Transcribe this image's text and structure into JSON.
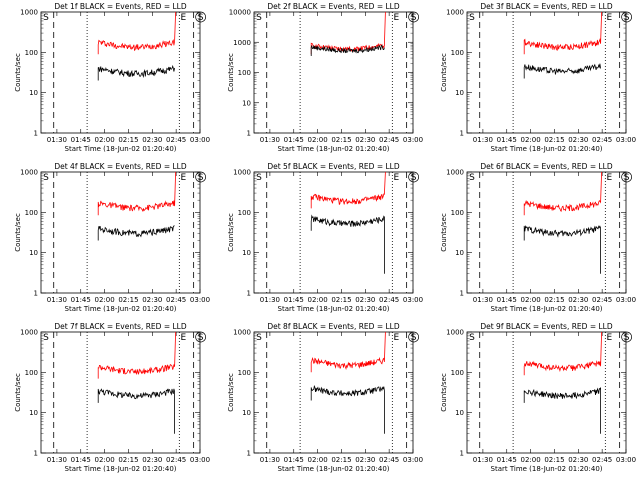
{
  "chart_data": [
    {
      "type": "line",
      "title": "Det 1f BLACK = Events, RED = LLD",
      "xlabel": "Start Time (18-Jun-02 01:20:40)",
      "ylabel": "Counts/sec",
      "yscale": "log",
      "ylim": [
        1,
        1000
      ],
      "xlim": [
        "01:20",
        "03:00"
      ],
      "x_ticks": [
        "01:30",
        "01:45",
        "02:00",
        "02:15",
        "02:30",
        "02:45",
        "03:00"
      ],
      "y_ticks": [
        "1",
        "10",
        "100",
        "1000"
      ],
      "markers": [
        "S",
        "E",
        "S"
      ],
      "series": [
        {
          "color": "#ff0000",
          "start": "01:56",
          "end": "02:44",
          "level": 180,
          "spike": 1000
        },
        {
          "color": "#000000",
          "start": "01:56",
          "end": "02:44",
          "level": 40
        }
      ]
    },
    {
      "type": "line",
      "title": "Det 2f BLACK = Events, RED = LLD",
      "xlabel": "Start Time (18-Jun-02 01:20:40)",
      "ylabel": "Counts/sec",
      "yscale": "log",
      "ylim": [
        1,
        10000
      ],
      "xlim": [
        "01:20",
        "03:00"
      ],
      "x_ticks": [
        "01:30",
        "01:45",
        "02:00",
        "02:15",
        "02:30",
        "02:45",
        "03:00"
      ],
      "y_ticks": [
        "1",
        "10",
        "100",
        "1000",
        "10000"
      ],
      "markers": [
        "S",
        "E",
        "S"
      ],
      "series": [
        {
          "color": "#ff0000",
          "start": "01:56",
          "end": "02:42",
          "level": 800,
          "spike": 10000
        },
        {
          "color": "#000000",
          "start": "01:56",
          "end": "02:42",
          "level": 700
        }
      ]
    },
    {
      "type": "line",
      "title": "Det 3f BLACK = Events, RED = LLD",
      "xlabel": "Start Time (18-Jun-02 01:20:40)",
      "ylabel": "Counts/sec",
      "yscale": "log",
      "ylim": [
        1,
        1000
      ],
      "xlim": [
        "01:20",
        "03:00"
      ],
      "x_ticks": [
        "01:30",
        "01:45",
        "02:00",
        "02:15",
        "02:30",
        "02:45",
        "03:00"
      ],
      "y_ticks": [
        "1",
        "10",
        "100",
        "1000"
      ],
      "markers": [
        "S",
        "E",
        "S"
      ],
      "series": [
        {
          "color": "#ff0000",
          "start": "01:56",
          "end": "02:44",
          "level": 180,
          "spike": 1000
        },
        {
          "color": "#000000",
          "start": "01:56",
          "end": "02:44",
          "level": 45
        }
      ]
    },
    {
      "type": "line",
      "title": "Det 4f BLACK = Events, RED = LLD",
      "xlabel": "Start Time (18-Jun-02 01:20:40)",
      "ylabel": "Counts/sec",
      "yscale": "log",
      "ylim": [
        1,
        1000
      ],
      "xlim": [
        "01:20",
        "03:00"
      ],
      "x_ticks": [
        "01:30",
        "01:45",
        "02:00",
        "02:15",
        "02:30",
        "02:45",
        "03:00"
      ],
      "y_ticks": [
        "1",
        "10",
        "100",
        "1000"
      ],
      "markers": [
        "S",
        "E",
        "S"
      ],
      "series": [
        {
          "color": "#ff0000",
          "start": "01:56",
          "end": "02:44",
          "level": 170,
          "spike": 1000
        },
        {
          "color": "#000000",
          "start": "01:56",
          "end": "02:44",
          "level": 40
        }
      ]
    },
    {
      "type": "line",
      "title": "Det 5f BLACK = Events, RED = LLD",
      "xlabel": "Start Time (18-Jun-02 01:20:40)",
      "ylabel": "Counts/sec",
      "yscale": "log",
      "ylim": [
        1,
        1000
      ],
      "xlim": [
        "01:20",
        "03:00"
      ],
      "x_ticks": [
        "01:30",
        "01:45",
        "02:00",
        "02:15",
        "02:30",
        "02:45",
        "03:00"
      ],
      "y_ticks": [
        "1",
        "10",
        "100",
        "1000"
      ],
      "markers": [
        "S",
        "E",
        "S"
      ],
      "series": [
        {
          "color": "#ff0000",
          "start": "01:56",
          "end": "02:42",
          "level": 250,
          "spike": 1000
        },
        {
          "color": "#000000",
          "start": "01:56",
          "end": "02:42",
          "level": 70,
          "drop": 3
        }
      ]
    },
    {
      "type": "line",
      "title": "Det 6f BLACK = Events, RED = LLD",
      "xlabel": "Start Time (18-Jun-02 01:20:40)",
      "ylabel": "Counts/sec",
      "yscale": "log",
      "ylim": [
        1,
        1000
      ],
      "xlim": [
        "01:20",
        "03:00"
      ],
      "x_ticks": [
        "01:30",
        "01:45",
        "02:00",
        "02:15",
        "02:30",
        "02:45",
        "03:00"
      ],
      "y_ticks": [
        "1",
        "10",
        "100",
        "1000"
      ],
      "markers": [
        "S",
        "E",
        "S"
      ],
      "series": [
        {
          "color": "#ff0000",
          "start": "01:56",
          "end": "02:44",
          "level": 170,
          "spike": 1000
        },
        {
          "color": "#000000",
          "start": "01:56",
          "end": "02:44",
          "level": 40,
          "drop": 3
        }
      ]
    },
    {
      "type": "line",
      "title": "Det 7f BLACK = Events, RED = LLD",
      "xlabel": "Start Time (18-Jun-02 01:20:40)",
      "ylabel": "Counts/sec",
      "yscale": "log",
      "ylim": [
        1,
        1000
      ],
      "xlim": [
        "01:20",
        "03:00"
      ],
      "x_ticks": [
        "01:30",
        "01:45",
        "02:00",
        "02:15",
        "02:30",
        "02:45",
        "03:00"
      ],
      "y_ticks": [
        "1",
        "10",
        "100",
        "1000"
      ],
      "markers": [
        "S",
        "E",
        "S"
      ],
      "series": [
        {
          "color": "#ff0000",
          "start": "01:56",
          "end": "02:44",
          "level": 140,
          "spike": 1000
        },
        {
          "color": "#000000",
          "start": "01:56",
          "end": "02:44",
          "level": 35,
          "drop": 3
        }
      ]
    },
    {
      "type": "line",
      "title": "Det 8f BLACK = Events, RED = LLD",
      "xlabel": "Start Time (18-Jun-02 01:20:40)",
      "ylabel": "Counts/sec",
      "yscale": "log",
      "ylim": [
        1,
        1000
      ],
      "xlim": [
        "01:20",
        "03:00"
      ],
      "x_ticks": [
        "01:30",
        "01:45",
        "02:00",
        "02:15",
        "02:30",
        "02:45",
        "03:00"
      ],
      "y_ticks": [
        "1",
        "10",
        "100",
        "1000"
      ],
      "markers": [
        "S",
        "E",
        "S"
      ],
      "series": [
        {
          "color": "#ff0000",
          "start": "01:56",
          "end": "02:42",
          "level": 200,
          "spike": 1000
        },
        {
          "color": "#000000",
          "start": "01:56",
          "end": "02:42",
          "level": 40,
          "drop": 3
        }
      ]
    },
    {
      "type": "line",
      "title": "Det 9f BLACK = Events, RED = LLD",
      "xlabel": "Start Time (18-Jun-02 01:20:40)",
      "ylabel": "Counts/sec",
      "yscale": "log",
      "ylim": [
        1,
        1000
      ],
      "xlim": [
        "01:20",
        "03:00"
      ],
      "x_ticks": [
        "01:30",
        "01:45",
        "02:00",
        "02:15",
        "02:30",
        "02:45",
        "03:00"
      ],
      "y_ticks": [
        "1",
        "10",
        "100",
        "1000"
      ],
      "markers": [
        "S",
        "E",
        "S"
      ],
      "series": [
        {
          "color": "#ff0000",
          "start": "01:56",
          "end": "02:44",
          "level": 170,
          "spike": 1000
        },
        {
          "color": "#000000",
          "start": "01:56",
          "end": "02:44",
          "level": 35,
          "drop": 3
        }
      ]
    }
  ]
}
